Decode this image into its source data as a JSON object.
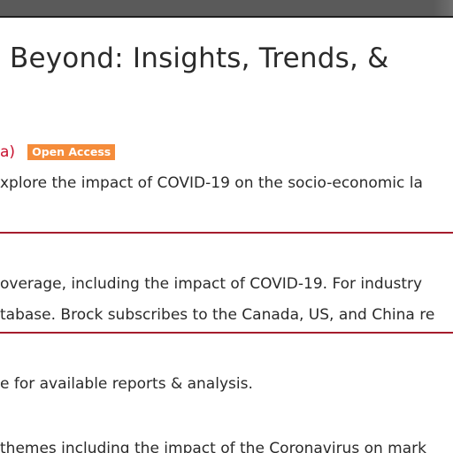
{
  "page": {
    "title": "Beyond: Insights, Trends, &"
  },
  "source": {
    "fragment": "a)",
    "badge": "Open Access"
  },
  "lines": {
    "l1": "xplore the impact of COVID-19 on the socio-economic la",
    "l2": "overage, including the impact of COVID-19. For industry",
    "l3": "tabase. Brock subscribes to the Canada, US, and China re",
    "l4": "e for available reports & analysis.",
    "l5": "themes including the impact of the Coronavirus on mark"
  },
  "colors": {
    "accent_red": "#a51d2d",
    "badge_orange": "#f58c3a",
    "top_bar": "#5a5a5a"
  }
}
